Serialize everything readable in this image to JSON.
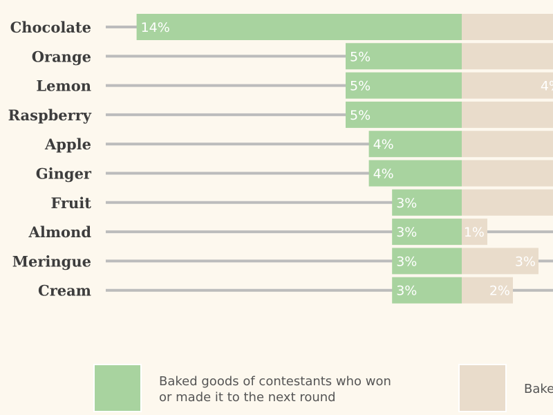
{
  "chart_data": {
    "type": "bar",
    "orientation": "horizontal-diverging",
    "categories": [
      "Chocolate",
      "Orange",
      "Lemon",
      "Raspberry",
      "Apple",
      "Ginger",
      "Fruit",
      "Almond",
      "Meringue",
      "Cream"
    ],
    "series": [
      {
        "name": "Baked goods of contestants who won or made it to the next round",
        "color": "#a8d39f",
        "direction": "left",
        "values": [
          14,
          5,
          5,
          5,
          4,
          4,
          3,
          3,
          3,
          3
        ],
        "labels": [
          "14%",
          "5%",
          "5%",
          "5%",
          "4%",
          "4%",
          "3%",
          "3%",
          "3%",
          "3%"
        ]
      },
      {
        "name": "Bake",
        "color": "#e9dccb",
        "direction": "right",
        "values": [
          null,
          null,
          4,
          4,
          4,
          null,
          null,
          1,
          3,
          2
        ],
        "labels": [
          "",
          "",
          "4%",
          "4",
          "4",
          "",
          "",
          "1%",
          "3%",
          "2%"
        ]
      }
    ],
    "legend": [
      {
        "lines": [
          "Baked goods of contestants who won",
          "or made it to the next round"
        ],
        "color": "#a8d39f"
      },
      {
        "lines": [
          "Bake"
        ],
        "color": "#e9dccb"
      }
    ],
    "axis_line_color": "#bcbcbc",
    "legend_position": "bottom"
  }
}
